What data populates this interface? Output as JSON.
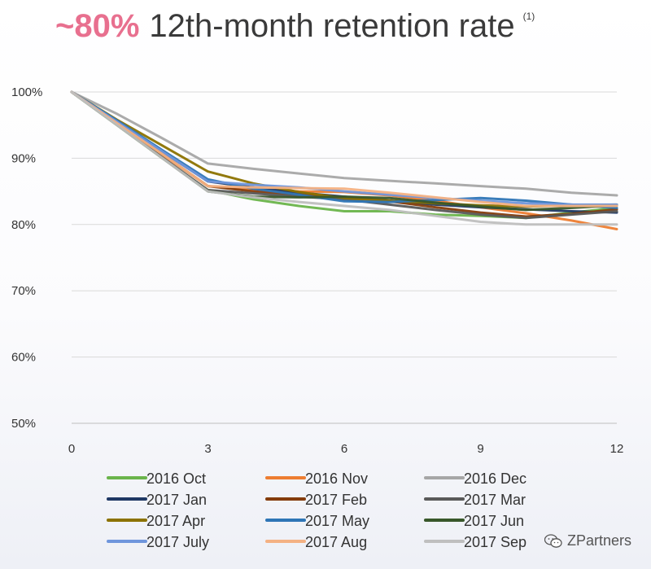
{
  "title": {
    "highlight": "~80%",
    "rest": "12th-month retention rate",
    "footnote": "(1)"
  },
  "watermark": {
    "text": "ZPartners",
    "icon": "wechat-icon"
  },
  "chart_data": {
    "type": "line",
    "title": "~80% 12th-month retention rate",
    "xlabel": "",
    "ylabel": "",
    "x": [
      0,
      1,
      2,
      3,
      4,
      5,
      6,
      7,
      8,
      9,
      10,
      11,
      12
    ],
    "xticks": [
      0,
      3,
      6,
      9,
      12
    ],
    "xtick_labels": [
      "0",
      "3",
      "6",
      "9",
      "12"
    ],
    "xlim": [
      0,
      12
    ],
    "ylim": [
      50,
      100
    ],
    "yticks": [
      50,
      60,
      70,
      80,
      90,
      100
    ],
    "ytick_labels": [
      "50%",
      "60%",
      "70%",
      "80%",
      "90%",
      "100%"
    ],
    "grid": "horizontal",
    "legend": "bottom",
    "series": [
      {
        "name": "2016 Oct",
        "color": "#6ab44b",
        "values": [
          100,
          95,
          90,
          85.2,
          83.8,
          82.8,
          82.0,
          82.0,
          81.5,
          81.3,
          81.0,
          81.8,
          82.5
        ]
      },
      {
        "name": "2016 Nov",
        "color": "#ed7d31",
        "values": [
          100,
          95.5,
          90.5,
          85.8,
          85.3,
          85.0,
          84.9,
          84.4,
          83.6,
          82.6,
          81.7,
          80.6,
          79.3
        ]
      },
      {
        "name": "2016 Dec",
        "color": "#a6a6a6",
        "values": [
          100,
          96.7,
          93.0,
          89.2,
          88.4,
          87.7,
          87.0,
          86.6,
          86.2,
          85.8,
          85.4,
          84.8,
          84.4
        ]
      },
      {
        "name": "2017 Jan",
        "color": "#1f3864",
        "values": [
          100,
          95.5,
          91.0,
          86.5,
          85.6,
          84.8,
          84.2,
          83.6,
          83.0,
          82.6,
          82.3,
          82.0,
          81.8
        ]
      },
      {
        "name": "2017 Feb",
        "color": "#843c0c",
        "values": [
          100,
          95.3,
          90.6,
          85.8,
          85.0,
          84.5,
          84.1,
          83.5,
          82.6,
          81.8,
          81.2,
          81.6,
          82.3
        ]
      },
      {
        "name": "2017 Mar",
        "color": "#595959",
        "values": [
          100,
          95.1,
          90.1,
          85.2,
          84.7,
          84.2,
          83.8,
          83.0,
          82.2,
          81.5,
          81.0,
          81.5,
          82.0
        ]
      },
      {
        "name": "2017 Apr",
        "color": "#8c7200",
        "values": [
          100,
          95.8,
          91.9,
          88.0,
          86.2,
          84.9,
          84.0,
          83.6,
          83.2,
          82.9,
          82.7,
          82.9,
          83.0
        ]
      },
      {
        "name": "2017 May",
        "color": "#2e75b6",
        "values": [
          100,
          95.7,
          91.2,
          86.8,
          85.4,
          84.5,
          83.5,
          83.4,
          83.7,
          84.0,
          83.6,
          83.0,
          82.5
        ]
      },
      {
        "name": "2017 Jun",
        "color": "#38572a",
        "values": [
          100,
          95.0,
          90.0,
          85.0,
          84.2,
          84.1,
          84.2,
          84.0,
          83.3,
          82.7,
          82.2,
          82.5,
          82.9
        ]
      },
      {
        "name": "2017 July",
        "color": "#6f96dc",
        "values": [
          100,
          95.5,
          91.0,
          86.5,
          86.0,
          85.6,
          85.0,
          84.5,
          84.0,
          83.6,
          83.2,
          83.0,
          83.0
        ]
      },
      {
        "name": "2017 Aug",
        "color": "#f4b183",
        "values": [
          100,
          95.3,
          90.6,
          85.8,
          85.6,
          85.5,
          85.4,
          84.8,
          84.1,
          83.4,
          82.8,
          82.8,
          82.8
        ]
      },
      {
        "name": "2017 Sep",
        "color": "#bfbfbf",
        "values": [
          100,
          95.0,
          90.0,
          85.0,
          84.1,
          83.4,
          82.8,
          82.2,
          81.3,
          80.4,
          80.0,
          80.0,
          80.0
        ]
      }
    ]
  }
}
